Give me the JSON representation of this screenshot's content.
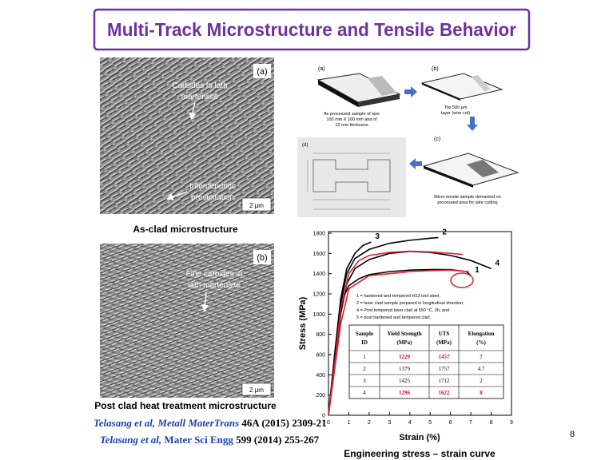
{
  "header": {
    "title": "Multi-Track Microstructure and Tensile Behavior"
  },
  "micrographs": [
    {
      "label": "(a)",
      "annotations": [
        "Carbides in lath",
        "martensite",
        "Interdendritic",
        "precipitation"
      ],
      "scale": "2 µm",
      "caption": "As-clad microstructure"
    },
    {
      "label": "(b)",
      "annotations": [
        "Fine carbides in",
        "lath martensite"
      ],
      "scale": "2 µm",
      "caption": "Post clad heat treatment microstructure"
    }
  ],
  "diagram": {
    "steps": [
      {
        "label": "(a)",
        "text": [
          "As processed sample of size",
          "100 mm X 100 mm  and of",
          "12 mm thickness"
        ]
      },
      {
        "label": "(b)",
        "text": [
          "Top 500 µm",
          "layer (wire cut)"
        ]
      },
      {
        "label": "(c)",
        "text": [
          "Micro tensile sample demarked on",
          "processed area for wire cutting"
        ]
      },
      {
        "label": "(d)",
        "text": []
      }
    ]
  },
  "chart_data": {
    "type": "line",
    "x_label": "Strain (%)",
    "y_label": "Stress (MPa)",
    "caption": "Engineering stress – strain curve",
    "xlim": [
      0,
      9
    ],
    "ylim": [
      0,
      1800
    ],
    "xticks": [
      0,
      1,
      2,
      3,
      4,
      5,
      6,
      7,
      8,
      9
    ],
    "yticks": [
      0,
      200,
      400,
      600,
      800,
      1000,
      1200,
      1400,
      1600,
      1800
    ],
    "series": [
      {
        "name": "1",
        "color": "#000000",
        "x": [
          0,
          0.3,
          0.5,
          0.7,
          1,
          1.5,
          2,
          3,
          4,
          5,
          6,
          6.8,
          7
        ],
        "values": [
          0,
          500,
          900,
          1150,
          1280,
          1350,
          1390,
          1420,
          1435,
          1440,
          1440,
          1420,
          1380
        ]
      },
      {
        "name": "2",
        "color": "#000000",
        "x": [
          0,
          0.3,
          0.6,
          0.9,
          1.3,
          2,
          3,
          4,
          5,
          5.4
        ],
        "values": [
          0,
          550,
          1100,
          1400,
          1550,
          1640,
          1700,
          1730,
          1750,
          1757
        ]
      },
      {
        "name": "3",
        "color": "#000000",
        "x": [
          0,
          0.3,
          0.6,
          0.9,
          1.3,
          1.7,
          2.1
        ],
        "values": [
          0,
          600,
          1150,
          1450,
          1600,
          1680,
          1712
        ]
      },
      {
        "name": "4",
        "color": "#000000",
        "x": [
          0,
          0.3,
          0.6,
          0.9,
          1.3,
          2,
          3,
          4,
          5,
          6,
          7,
          8
        ],
        "values": [
          0,
          500,
          1000,
          1300,
          1450,
          1540,
          1600,
          1620,
          1610,
          1580,
          1530,
          1450
        ]
      },
      {
        "color": "#e02030",
        "x": [
          0,
          0.3,
          0.6,
          1,
          1.5,
          2,
          3,
          4,
          5,
          6,
          6.6
        ],
        "values": [
          0,
          500,
          1050,
          1400,
          1530,
          1580,
          1610,
          1622,
          1615,
          1600,
          1590
        ]
      },
      {
        "color": "#e02030",
        "x": [
          0,
          0.3,
          0.6,
          1,
          2,
          3,
          4,
          5,
          6,
          6.9
        ],
        "values": [
          0,
          450,
          900,
          1250,
          1380,
          1400,
          1420,
          1430,
          1435,
          1420
        ]
      }
    ],
    "annotations": [
      "1 = hardened and tempered H13 tool steel,",
      "2 = laser clad sample prepared in longitudinal direction,",
      "4 = Post tempered laser clad at 550 °C, 2h, and",
      "5 = post hardened and tempered clad."
    ]
  },
  "table": {
    "header": [
      [
        "Sample",
        "ID"
      ],
      [
        "Yield Strength",
        "(MPa)"
      ],
      [
        "UTS",
        "(MPa)"
      ],
      [
        "Elongation",
        "(%)"
      ]
    ],
    "rows": [
      [
        1,
        1229,
        1457,
        7
      ],
      [
        2,
        1379,
        1757,
        4.7
      ],
      [
        3,
        1425,
        1712,
        2
      ],
      [
        4,
        1296,
        1622,
        8
      ]
    ]
  },
  "references": [
    {
      "authors": "Telasang et al, ",
      "journal": "Metall MaterTrans",
      "details": " 46A (2015) 2309-21"
    },
    {
      "authors": "Telasang et al, ",
      "journal": "Mater Sci Engg",
      "details": " 599 (2014) 255-267"
    }
  ],
  "page_number": "8"
}
